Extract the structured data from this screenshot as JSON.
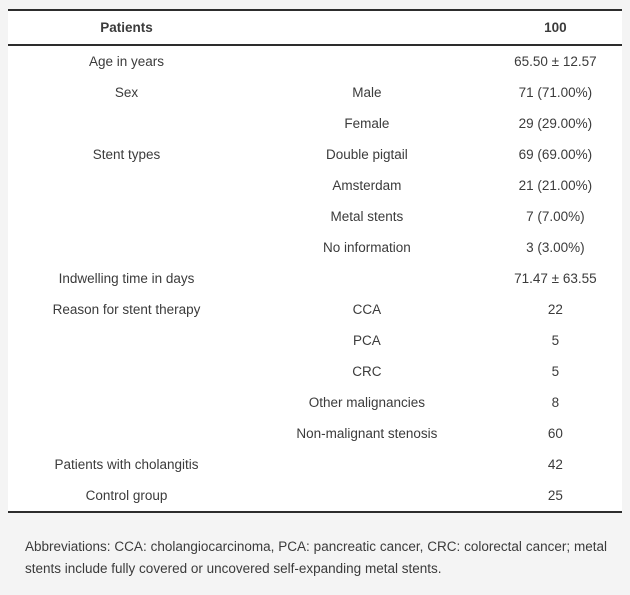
{
  "table": {
    "header": {
      "col1": "Patients",
      "col2": "",
      "col3": "100"
    },
    "rows": [
      {
        "label": "Age in years",
        "sub": "",
        "value": "65.50 ± 12.57"
      },
      {
        "label": "Sex",
        "sub": "Male",
        "value": "71 (71.00%)"
      },
      {
        "label": "",
        "sub": "Female",
        "value": "29 (29.00%)"
      },
      {
        "label": "Stent types",
        "sub": "Double pigtail",
        "value": "69 (69.00%)"
      },
      {
        "label": "",
        "sub": "Amsterdam",
        "value": "21 (21.00%)"
      },
      {
        "label": "",
        "sub": "Metal stents",
        "value": "7 (7.00%)"
      },
      {
        "label": "",
        "sub": "No information",
        "value": "3 (3.00%)"
      },
      {
        "label": "Indwelling time in days",
        "sub": "",
        "value": "71.47 ± 63.55"
      },
      {
        "label": "Reason for stent therapy",
        "sub": "CCA",
        "value": "22"
      },
      {
        "label": "",
        "sub": "PCA",
        "value": "5"
      },
      {
        "label": "",
        "sub": "CRC",
        "value": "5"
      },
      {
        "label": "",
        "sub": "Other malignancies",
        "value": "8"
      },
      {
        "label": "",
        "sub": "Non-malignant stenosis",
        "value": "60"
      },
      {
        "label": "Patients with cholangitis",
        "sub": "",
        "value": "42"
      },
      {
        "label": "Control group",
        "sub": "",
        "value": "25"
      }
    ]
  },
  "footnote": "Abbreviations: CCA: cholangiocarcinoma, PCA: pancreatic cancer, CRC: colorectal cancer; metal stents include fully covered or uncovered self-expanding metal stents.",
  "colors": {
    "page_background": "#f4f4f4",
    "table_background": "#ffffff",
    "rule": "#2d2d2d",
    "text": "#3b3b3b"
  }
}
